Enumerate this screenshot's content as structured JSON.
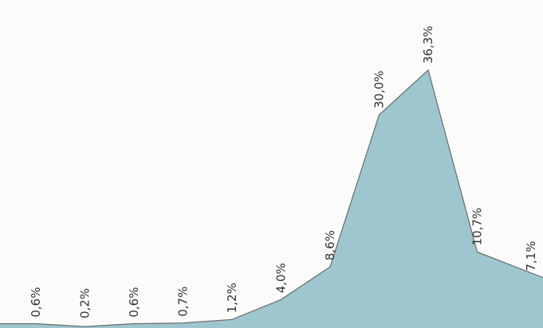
{
  "chart_data": {
    "type": "area",
    "title": "",
    "xlabel": "",
    "ylabel": "",
    "ylim": [
      0,
      40
    ],
    "grid": false,
    "legend": "none",
    "series": [
      {
        "values": [
          0.6,
          0.2,
          0.6,
          0.7,
          1.2,
          4.0,
          8.6,
          30.0,
          36.3,
          10.7,
          7.1
        ],
        "labels": [
          "0,6%",
          "0,2%",
          "0,6%",
          "0,7%",
          "1,2%",
          "4,0%",
          "8,6%",
          "30,0%",
          "36,3%",
          "10,7%",
          "7,1%"
        ]
      }
    ],
    "colors": {
      "fill": "#9ec6cf",
      "stroke": "#6b6b6b",
      "background": "#fbfbfb",
      "label": "#333333"
    }
  }
}
